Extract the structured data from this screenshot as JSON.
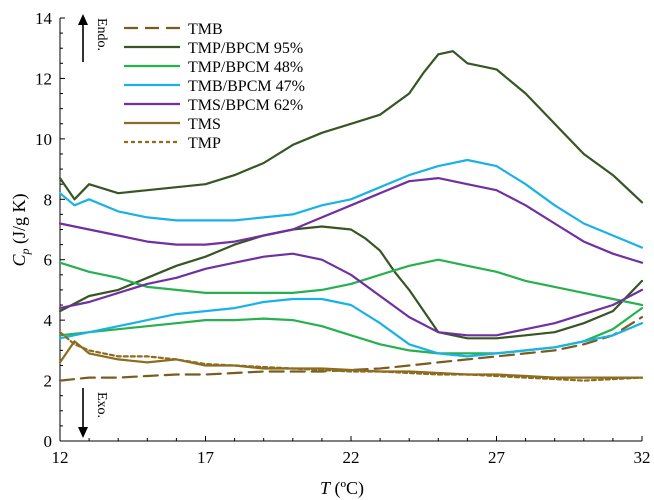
{
  "chart_data": {
    "type": "line",
    "xlabel_italic": "T",
    "xlabel_unit": " (ºC)",
    "ylabel_italic": "C",
    "ylabel_sub": "p",
    "ylabel_unit": " (J/g K)",
    "xlim": [
      12,
      32
    ],
    "ylim": [
      0,
      14
    ],
    "xticks": [
      12,
      17,
      22,
      27,
      32
    ],
    "yticks": [
      0,
      2,
      4,
      6,
      8,
      10,
      12,
      14
    ],
    "grid": false,
    "legend_position": "top-center",
    "annotations": {
      "endo": "Endo.",
      "exo": "Exo."
    },
    "series": [
      {
        "name": "TMB",
        "color": "#7a5c1e",
        "dash": "14,7",
        "x": [
          12,
          13,
          14,
          15,
          16,
          17,
          18,
          19,
          20,
          21,
          22,
          23,
          24,
          25,
          26,
          27,
          28,
          29,
          30,
          31,
          32
        ],
        "y": [
          2.0,
          2.1,
          2.1,
          2.15,
          2.2,
          2.2,
          2.25,
          2.3,
          2.3,
          2.3,
          2.35,
          2.4,
          2.5,
          2.6,
          2.7,
          2.8,
          2.9,
          3.0,
          3.2,
          3.5,
          4.1
        ]
      },
      {
        "name": "TMP/BPCM 95%",
        "color": "#375623",
        "dash": "",
        "x": [
          12,
          12.5,
          13,
          14,
          15,
          16,
          17,
          18,
          19,
          20,
          21,
          22,
          23,
          24,
          24.5,
          25,
          25.5,
          26,
          26.5,
          27,
          28,
          29,
          30,
          31,
          32
        ],
        "y": [
          8.7,
          8.0,
          8.5,
          8.2,
          8.3,
          8.4,
          8.5,
          8.8,
          9.2,
          9.8,
          10.2,
          10.5,
          10.8,
          11.5,
          12.2,
          12.8,
          12.9,
          12.5,
          12.4,
          12.3,
          11.5,
          10.5,
          9.5,
          8.8,
          7.9
        ]
      },
      {
        "name": "TMP/BPCM 95%",
        "color": "#375623",
        "dash": "",
        "x": [
          12,
          13,
          14,
          15,
          16,
          17,
          18,
          19,
          20,
          21,
          22,
          22.5,
          23,
          23.5,
          24,
          24.5,
          25,
          26,
          27,
          28,
          29,
          30,
          31,
          32
        ],
        "y": [
          4.3,
          4.8,
          5.0,
          5.4,
          5.8,
          6.1,
          6.5,
          6.8,
          7.0,
          7.1,
          7.0,
          6.7,
          6.3,
          5.6,
          5.0,
          4.3,
          3.6,
          3.4,
          3.4,
          3.5,
          3.6,
          3.9,
          4.3,
          5.3
        ]
      },
      {
        "name": "TMP/BPCM 48%",
        "color": "#27b04f",
        "dash": "",
        "x": [
          12,
          13,
          14,
          15,
          16,
          17,
          18,
          19,
          20,
          21,
          22,
          23,
          24,
          25,
          26,
          27,
          28,
          29,
          30,
          31,
          32
        ],
        "y": [
          5.9,
          5.6,
          5.4,
          5.1,
          5.0,
          4.9,
          4.9,
          4.9,
          4.9,
          5.0,
          5.2,
          5.5,
          5.8,
          6.0,
          5.8,
          5.6,
          5.3,
          5.1,
          4.9,
          4.7,
          4.5
        ]
      },
      {
        "name": "TMP/BPCM 48%",
        "color": "#27b04f",
        "dash": "",
        "x": [
          12,
          13,
          14,
          15,
          16,
          17,
          18,
          19,
          20,
          21,
          22,
          23,
          24,
          25,
          26,
          27,
          28,
          29,
          30,
          31,
          32
        ],
        "y": [
          3.5,
          3.6,
          3.7,
          3.8,
          3.9,
          4.0,
          4.0,
          4.05,
          4.0,
          3.8,
          3.5,
          3.2,
          3.0,
          2.9,
          2.9,
          2.9,
          3.0,
          3.1,
          3.3,
          3.7,
          4.4
        ]
      },
      {
        "name": "TMB/BPCM 47%",
        "color": "#1ab2e6",
        "dash": "",
        "x": [
          12,
          12.5,
          13,
          14,
          15,
          16,
          17,
          18,
          19,
          20,
          21,
          22,
          23,
          24,
          25,
          26,
          27,
          28,
          29,
          30,
          31,
          32
        ],
        "y": [
          8.2,
          7.8,
          8.0,
          7.6,
          7.4,
          7.3,
          7.3,
          7.3,
          7.4,
          7.5,
          7.8,
          8.0,
          8.4,
          8.8,
          9.1,
          9.3,
          9.1,
          8.5,
          7.8,
          7.2,
          6.8,
          6.4
        ]
      },
      {
        "name": "TMB/BPCM 47%",
        "color": "#1ab2e6",
        "dash": "",
        "x": [
          12,
          13,
          14,
          15,
          16,
          17,
          18,
          19,
          20,
          21,
          22,
          23,
          24,
          25,
          26,
          27,
          28,
          29,
          30,
          31,
          32
        ],
        "y": [
          3.4,
          3.6,
          3.8,
          4.0,
          4.2,
          4.3,
          4.4,
          4.6,
          4.7,
          4.7,
          4.5,
          3.9,
          3.2,
          2.9,
          2.8,
          2.9,
          3.0,
          3.1,
          3.3,
          3.5,
          3.9
        ]
      },
      {
        "name": "TMS/BPCM 62%",
        "color": "#7030a0",
        "dash": "",
        "x": [
          12,
          13,
          14,
          15,
          16,
          17,
          18,
          19,
          20,
          21,
          22,
          23,
          24,
          25,
          26,
          27,
          28,
          29,
          30,
          31,
          32
        ],
        "y": [
          7.2,
          7.0,
          6.8,
          6.6,
          6.5,
          6.5,
          6.6,
          6.8,
          7.0,
          7.4,
          7.8,
          8.2,
          8.6,
          8.7,
          8.5,
          8.3,
          7.8,
          7.2,
          6.6,
          6.2,
          5.9
        ]
      },
      {
        "name": "TMS/BPCM 62%",
        "color": "#7030a0",
        "dash": "",
        "x": [
          12,
          13,
          14,
          15,
          16,
          17,
          18,
          19,
          20,
          21,
          22,
          23,
          24,
          25,
          26,
          27,
          28,
          29,
          30,
          31,
          32
        ],
        "y": [
          4.4,
          4.6,
          4.9,
          5.2,
          5.4,
          5.7,
          5.9,
          6.1,
          6.2,
          6.0,
          5.5,
          4.8,
          4.1,
          3.6,
          3.5,
          3.5,
          3.7,
          3.9,
          4.2,
          4.5,
          5.0
        ]
      },
      {
        "name": "TMS",
        "color": "#8c6d1f",
        "dash": "",
        "x": [
          12,
          12.5,
          13,
          14,
          15,
          16,
          17,
          18,
          19,
          20,
          21,
          22,
          23,
          24,
          25,
          26,
          27,
          28,
          29,
          30,
          31,
          32
        ],
        "y": [
          2.6,
          3.3,
          2.9,
          2.7,
          2.6,
          2.7,
          2.5,
          2.5,
          2.4,
          2.4,
          2.4,
          2.35,
          2.3,
          2.3,
          2.25,
          2.2,
          2.2,
          2.15,
          2.1,
          2.1,
          2.1,
          2.1
        ]
      },
      {
        "name": "TMP",
        "color": "#8c6d1f",
        "dash": "4,3",
        "x": [
          12,
          12.5,
          13,
          14,
          15,
          16,
          17,
          18,
          19,
          20,
          21,
          22,
          23,
          24,
          25,
          26,
          27,
          28,
          29,
          30,
          31,
          32
        ],
        "y": [
          3.6,
          3.2,
          3.0,
          2.8,
          2.8,
          2.7,
          2.55,
          2.5,
          2.45,
          2.4,
          2.35,
          2.3,
          2.3,
          2.25,
          2.2,
          2.2,
          2.15,
          2.1,
          2.05,
          2.0,
          2.05,
          2.1
        ]
      }
    ],
    "legend": [
      {
        "label": "TMB",
        "color": "#7a5c1e",
        "dash": "14,7"
      },
      {
        "label": "TMP/BPCM 95%",
        "color": "#375623",
        "dash": ""
      },
      {
        "label": "TMP/BPCM 48%",
        "color": "#27b04f",
        "dash": ""
      },
      {
        "label": "TMB/BPCM 47%",
        "color": "#1ab2e6",
        "dash": ""
      },
      {
        "label": "TMS/BPCM 62%",
        "color": "#7030a0",
        "dash": ""
      },
      {
        "label": "TMS",
        "color": "#8c6d1f",
        "dash": ""
      },
      {
        "label": "TMP",
        "color": "#8c6d1f",
        "dash": "4,3"
      }
    ]
  }
}
